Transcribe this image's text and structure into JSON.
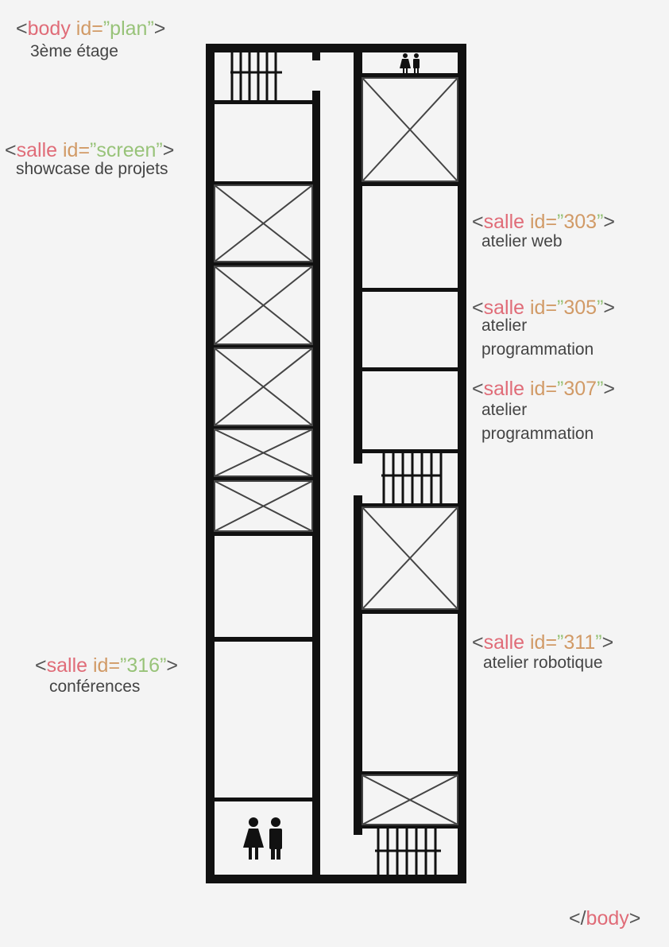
{
  "body_open": {
    "lt": "<",
    "tag": "body",
    "attr": "id=",
    "q1": "”",
    "val": "plan",
    "q2": "”",
    "gt": ">"
  },
  "body_desc": "3ème étage",
  "labels": [
    {
      "key": "screen",
      "lt": "<",
      "tag": "salle",
      "attr": "id=",
      "q1": "”",
      "val": "screen",
      "q2": "”",
      "gt": ">",
      "desc": [
        "showcase de projets"
      ]
    },
    {
      "key": "303",
      "lt": "<",
      "tag": "salle",
      "attr": "id=",
      "q1": "”",
      "val": "303",
      "q2": "”",
      "gt": ">",
      "desc": [
        "atelier web"
      ]
    },
    {
      "key": "305",
      "lt": "<",
      "tag": "salle",
      "attr": "id=",
      "q1": "”",
      "val": "305",
      "q2": "”",
      "gt": ">",
      "desc": [
        "atelier",
        "programmation"
      ]
    },
    {
      "key": "307",
      "lt": "<",
      "tag": "salle",
      "attr": "id=",
      "q1": "”",
      "val": "307",
      "q2": "”",
      "gt": ">",
      "desc": [
        "atelier",
        "programmation"
      ]
    },
    {
      "key": "311",
      "lt": "<",
      "tag": "salle",
      "attr": "id=",
      "q1": "”",
      "val": "311",
      "q2": "”",
      "gt": ">",
      "desc": [
        "atelier robotique"
      ]
    },
    {
      "key": "316",
      "lt": "<",
      "tag": "salle",
      "attr": "id=",
      "q1": "”",
      "val": "316",
      "q2": "”",
      "gt": ">",
      "desc": [
        "conférences"
      ]
    }
  ],
  "body_close": {
    "lt": "</",
    "tag": "body",
    "gt": ">"
  },
  "colors": {
    "wall": "#111111",
    "floor": "#f4f4f4",
    "element": "#e06c78",
    "attribute": "#d19a66",
    "value": "#98c379",
    "punct": "#555555",
    "text": "#444444"
  },
  "icons": [
    "stairs-icon",
    "restroom-icon",
    "x-cross-room-icon"
  ]
}
